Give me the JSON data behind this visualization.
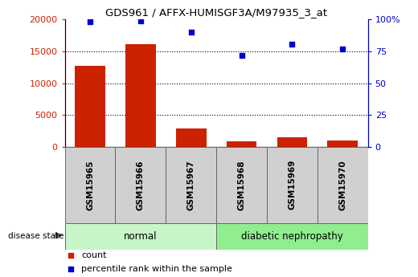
{
  "title": "GDS961 / AFFX-HUMISGF3A/M97935_3_at",
  "samples": [
    "GSM15965",
    "GSM15966",
    "GSM15967",
    "GSM15968",
    "GSM15969",
    "GSM15970"
  ],
  "counts": [
    12700,
    16100,
    2900,
    900,
    1500,
    1000
  ],
  "percentile_ranks": [
    98,
    99,
    90,
    71.5,
    80.5,
    77
  ],
  "left_ylim": [
    0,
    20000
  ],
  "right_ylim": [
    0,
    100
  ],
  "left_yticks": [
    0,
    5000,
    10000,
    15000,
    20000
  ],
  "right_yticks": [
    0,
    25,
    50,
    75,
    100
  ],
  "left_ytick_labels": [
    "0",
    "5000",
    "10000",
    "15000",
    "20000"
  ],
  "right_ytick_labels": [
    "0",
    "25",
    "50",
    "75",
    "100%"
  ],
  "bar_color": "#cc2200",
  "scatter_color": "#0000cc",
  "bar_width": 0.6,
  "left_axis_color": "#cc2200",
  "right_axis_color": "#0000cc",
  "group_normal_color": "#c8f5c8",
  "group_diab_color": "#90EE90",
  "xtick_bg_color": "#d0d0d0",
  "disease_state_label": "disease state",
  "legend_count_label": "count",
  "legend_percentile_label": "percentile rank within the sample",
  "normal_label": "normal",
  "diab_label": "diabetic nephropathy"
}
